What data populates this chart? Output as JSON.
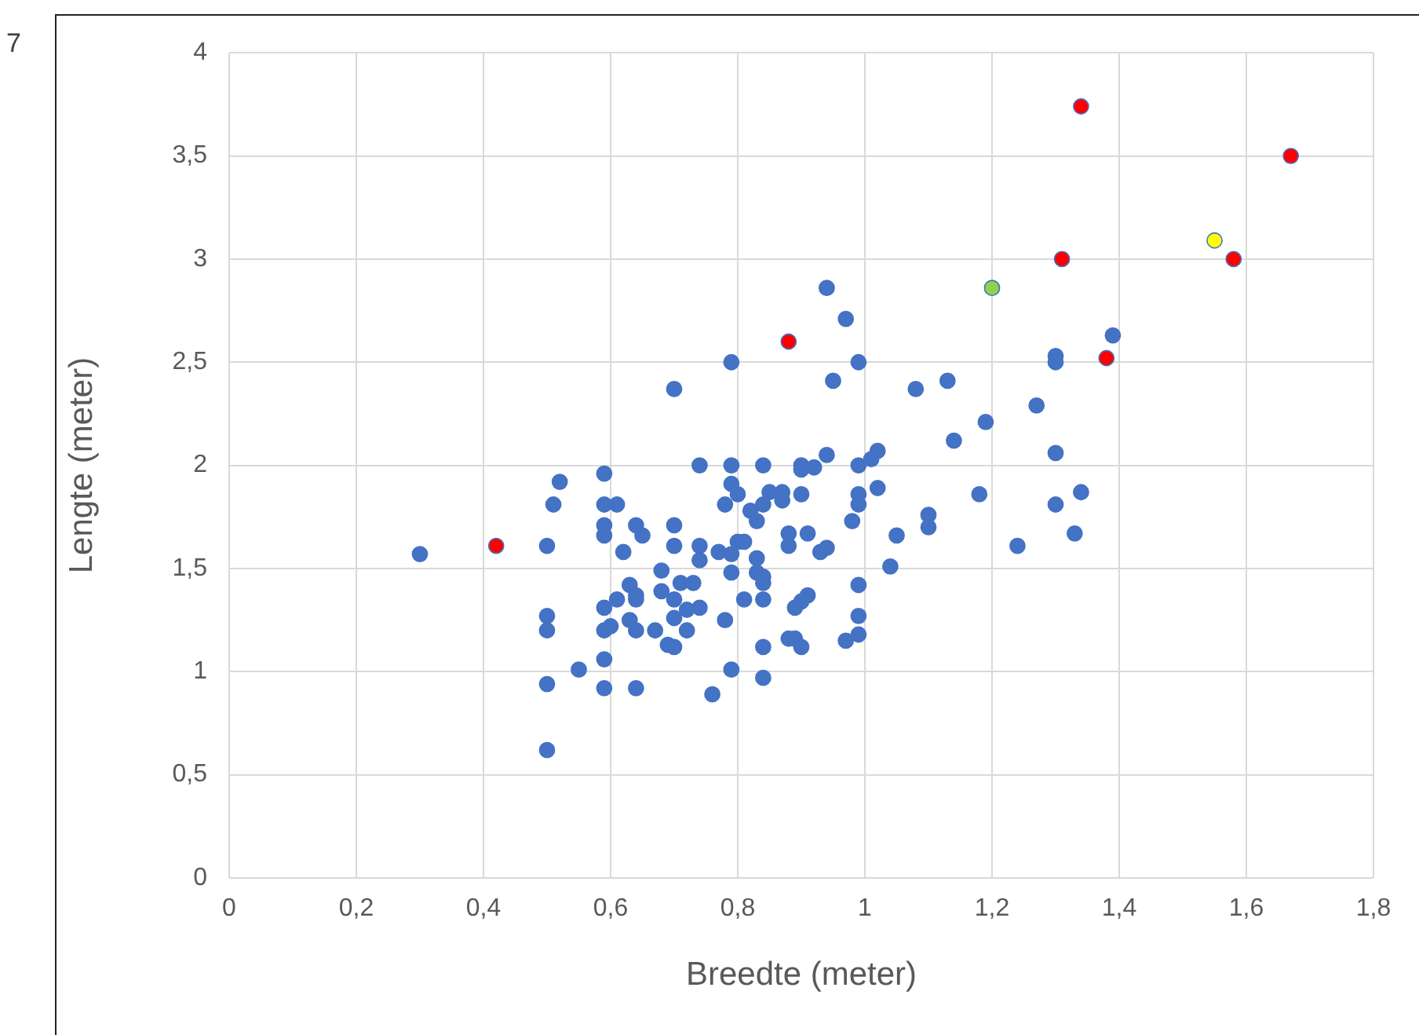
{
  "chart_data": {
    "type": "scatter",
    "xlabel": "Breedte (meter)",
    "ylabel": "Lengte (meter)",
    "annotations": [
      "7"
    ],
    "xlim": [
      0,
      1.8
    ],
    "xticks": [
      0,
      {
        "value": 0.2,
        "label": "0,2"
      },
      {
        "value": 0.4,
        "label": "0,4"
      },
      {
        "value": 0.6,
        "label": "0,6"
      },
      {
        "value": 0.8,
        "label": "0,8"
      },
      1,
      {
        "value": 1.2,
        "label": "1,2"
      },
      {
        "value": 1.4,
        "label": "1,4"
      },
      {
        "value": 1.6,
        "label": "1,6"
      },
      {
        "value": 1.8,
        "label": "1,8"
      }
    ],
    "ylim": [
      0,
      4
    ],
    "yticks": [
      0,
      {
        "value": 0.5,
        "label": "0,5"
      },
      1,
      {
        "value": 1.5,
        "label": "1,5"
      },
      2,
      {
        "value": 2.5,
        "label": "2,5"
      },
      3,
      {
        "value": 3.5,
        "label": "3,5"
      },
      4
    ],
    "grid": true,
    "marker": "circle",
    "legend": false,
    "series": [
      {
        "color": "#4472c4",
        "x": [
          0.3,
          0.5,
          0.52,
          0.51,
          0.59,
          0.59,
          0.61,
          0.59,
          0.59,
          0.64,
          0.65,
          0.7,
          0.7,
          0.62,
          0.74,
          0.74,
          0.74,
          0.68,
          0.63,
          0.71,
          0.73,
          0.68,
          0.64,
          0.64,
          0.61,
          0.7,
          0.72,
          0.74,
          0.59,
          0.7,
          0.63,
          0.5,
          0.5,
          0.59,
          0.6,
          0.64,
          0.67,
          0.72,
          0.69,
          0.7,
          0.59,
          0.55,
          0.5,
          0.59,
          0.64,
          0.5,
          0.7,
          0.94,
          0.97,
          0.79,
          0.99,
          0.95,
          1.08,
          1.13,
          1.19,
          1.14,
          0.79,
          0.84,
          0.9,
          0.9,
          0.92,
          0.94,
          0.99,
          1.01,
          1.02,
          0.79,
          0.8,
          0.78,
          0.85,
          0.87,
          0.87,
          0.84,
          0.82,
          0.83,
          0.9,
          0.99,
          0.99,
          1.02,
          0.98,
          0.88,
          0.88,
          0.91,
          0.93,
          0.94,
          1.05,
          1.1,
          1.1,
          1.18,
          1.04,
          0.77,
          0.79,
          0.8,
          0.81,
          0.83,
          0.79,
          0.83,
          0.84,
          0.84,
          0.81,
          0.84,
          0.91,
          0.9,
          0.89,
          0.99,
          0.78,
          0.99,
          0.88,
          0.89,
          0.84,
          0.9,
          0.97,
          0.99,
          0.79,
          0.84,
          0.76,
          1.39,
          1.3,
          1.3,
          1.27,
          1.3,
          1.3,
          1.34,
          1.33,
          1.24
        ],
        "values": [
          1.57,
          1.61,
          1.92,
          1.81,
          1.96,
          1.81,
          1.81,
          1.71,
          1.66,
          1.71,
          1.66,
          1.71,
          1.61,
          1.58,
          2.0,
          1.61,
          1.54,
          1.49,
          1.42,
          1.43,
          1.43,
          1.39,
          1.37,
          1.35,
          1.35,
          1.35,
          1.3,
          1.31,
          1.31,
          1.26,
          1.25,
          1.27,
          1.2,
          1.2,
          1.22,
          1.2,
          1.2,
          1.2,
          1.13,
          1.12,
          1.06,
          1.01,
          0.94,
          0.92,
          0.92,
          0.62,
          2.37,
          2.86,
          2.71,
          2.5,
          2.5,
          2.41,
          2.37,
          2.41,
          2.21,
          2.12,
          2.0,
          2.0,
          2.0,
          1.98,
          1.99,
          2.05,
          2.0,
          2.03,
          2.07,
          1.91,
          1.86,
          1.81,
          1.87,
          1.87,
          1.83,
          1.81,
          1.78,
          1.73,
          1.86,
          1.86,
          1.81,
          1.89,
          1.73,
          1.67,
          1.61,
          1.67,
          1.58,
          1.6,
          1.66,
          1.76,
          1.7,
          1.86,
          1.51,
          1.58,
          1.57,
          1.63,
          1.63,
          1.55,
          1.48,
          1.48,
          1.46,
          1.43,
          1.35,
          1.35,
          1.37,
          1.34,
          1.31,
          1.42,
          1.25,
          1.27,
          1.16,
          1.16,
          1.12,
          1.12,
          1.15,
          1.18,
          1.01,
          0.97,
          0.89,
          2.63,
          2.53,
          2.5,
          2.29,
          2.06,
          1.81,
          1.87,
          1.67,
          1.61
        ]
      },
      {
        "color": "#ff0000",
        "x": [
          0.42,
          0.88,
          1.34,
          1.67,
          1.58,
          1.31,
          1.38
        ],
        "values": [
          1.61,
          2.6,
          3.74,
          3.5,
          3.0,
          3.0,
          2.52
        ]
      },
      {
        "color": "#92d050",
        "x": [
          1.2
        ],
        "values": [
          2.86
        ]
      },
      {
        "color": "#ffff00",
        "x": [
          1.55
        ],
        "values": [
          3.09
        ]
      }
    ]
  }
}
